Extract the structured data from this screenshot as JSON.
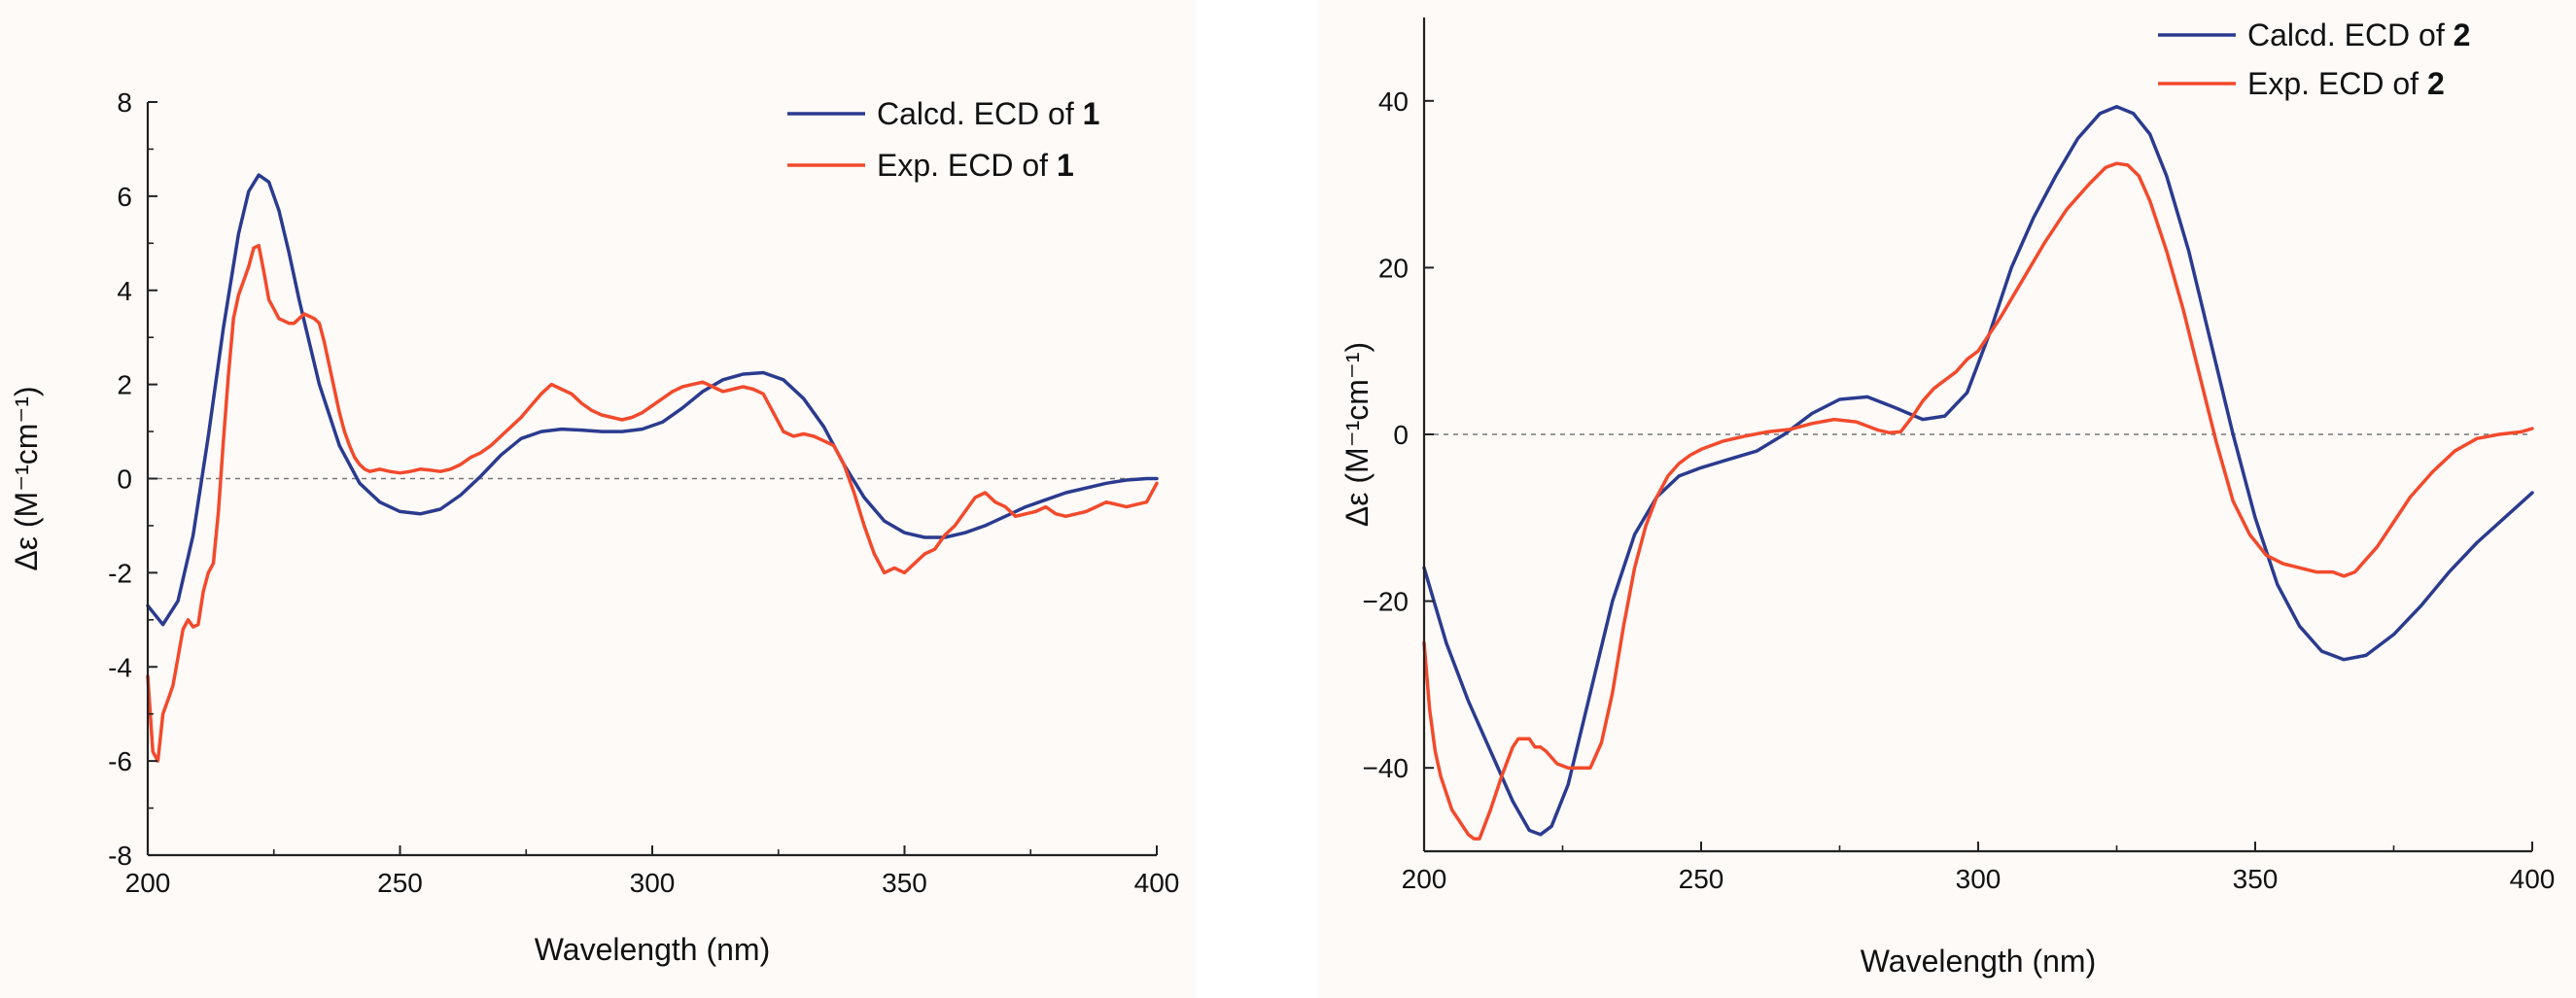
{
  "colors": {
    "calc": "#2a3b8f",
    "exp": "#f24a2c",
    "axis": "#222222",
    "zero": "#777777"
  },
  "chart_data": [
    {
      "type": "line",
      "xlabel": "Wavelength (nm)",
      "ylabel": "Δε (M⁻¹cm⁻¹)",
      "xlim": [
        200,
        400
      ],
      "ylim": [
        -8,
        8
      ],
      "xticks": [
        200,
        250,
        300,
        350,
        400
      ],
      "xtick_labels": [
        "200",
        "250",
        "300",
        "350",
        "400"
      ],
      "yticks": [
        -8,
        -6,
        -4,
        -2,
        0,
        2,
        4,
        6,
        8
      ],
      "ytick_labels": [
        "-8",
        "-6",
        "-4",
        "-2",
        "0",
        "2",
        "4",
        "6",
        "8"
      ],
      "zero_line": true,
      "legend_position": "top-right",
      "series": [
        {
          "name": "Calcd. ECD of 1",
          "legend_prefix": "Calcd. ECD of ",
          "legend_bold": "1",
          "color_key": "calc",
          "x": [
            200,
            203,
            206,
            209,
            212,
            215,
            218,
            220,
            222,
            224,
            226,
            228,
            230,
            234,
            238,
            242,
            246,
            250,
            254,
            258,
            262,
            266,
            270,
            274,
            278,
            282,
            286,
            290,
            294,
            298,
            302,
            306,
            310,
            314,
            318,
            322,
            326,
            330,
            334,
            338,
            342,
            346,
            350,
            354,
            358,
            362,
            366,
            370,
            374,
            378,
            382,
            386,
            390,
            394,
            398,
            400
          ],
          "y": [
            -2.7,
            -3.1,
            -2.6,
            -1.2,
            0.9,
            3.2,
            5.2,
            6.1,
            6.45,
            6.3,
            5.7,
            4.8,
            3.8,
            2.0,
            0.7,
            -0.1,
            -0.5,
            -0.7,
            -0.75,
            -0.65,
            -0.35,
            0.05,
            0.5,
            0.85,
            1.0,
            1.05,
            1.03,
            1.0,
            1.0,
            1.05,
            1.2,
            1.5,
            1.85,
            2.1,
            2.22,
            2.25,
            2.1,
            1.7,
            1.1,
            0.3,
            -0.4,
            -0.9,
            -1.15,
            -1.25,
            -1.25,
            -1.15,
            -1.0,
            -0.8,
            -0.6,
            -0.45,
            -0.3,
            -0.2,
            -0.1,
            -0.03,
            0.0,
            0.0
          ]
        },
        {
          "name": "Exp. ECD of 1",
          "legend_prefix": "Exp. ECD of ",
          "legend_bold": "1",
          "color_key": "exp",
          "x": [
            200,
            201,
            202,
            203,
            204,
            205,
            206,
            207,
            208,
            209,
            210,
            211,
            212,
            213,
            214,
            215,
            216,
            217,
            218,
            219,
            220,
            221,
            222,
            223,
            224,
            225,
            226,
            227,
            228,
            229,
            230,
            231,
            232,
            233,
            234,
            235,
            236,
            237,
            238,
            239,
            240,
            241,
            242,
            243,
            244,
            246,
            248,
            250,
            252,
            254,
            256,
            258,
            260,
            262,
            264,
            266,
            268,
            270,
            272,
            274,
            276,
            278,
            280,
            282,
            284,
            286,
            288,
            290,
            292,
            294,
            296,
            298,
            300,
            302,
            304,
            306,
            308,
            310,
            312,
            314,
            316,
            318,
            320,
            322,
            324,
            326,
            328,
            330,
            332,
            334,
            336,
            338,
            340,
            342,
            344,
            346,
            348,
            350,
            352,
            354,
            356,
            358,
            360,
            362,
            364,
            366,
            368,
            370,
            372,
            374,
            376,
            378,
            380,
            382,
            384,
            386,
            388,
            390,
            392,
            394,
            396,
            398,
            400
          ],
          "y": [
            -4.2,
            -5.8,
            -6.0,
            -5.0,
            -4.7,
            -4.4,
            -3.8,
            -3.2,
            -3.0,
            -3.15,
            -3.1,
            -2.4,
            -2.0,
            -1.8,
            -0.7,
            0.8,
            2.2,
            3.4,
            3.9,
            4.2,
            4.5,
            4.9,
            4.95,
            4.4,
            3.8,
            3.6,
            3.4,
            3.35,
            3.3,
            3.3,
            3.4,
            3.5,
            3.45,
            3.4,
            3.3,
            2.9,
            2.4,
            1.9,
            1.4,
            1.0,
            0.7,
            0.45,
            0.3,
            0.2,
            0.15,
            0.2,
            0.15,
            0.12,
            0.15,
            0.2,
            0.18,
            0.15,
            0.2,
            0.3,
            0.45,
            0.55,
            0.7,
            0.9,
            1.1,
            1.3,
            1.55,
            1.8,
            2.0,
            1.9,
            1.8,
            1.6,
            1.45,
            1.35,
            1.3,
            1.25,
            1.3,
            1.4,
            1.55,
            1.7,
            1.85,
            1.95,
            2.0,
            2.05,
            1.95,
            1.85,
            1.9,
            1.95,
            1.9,
            1.8,
            1.4,
            1.0,
            0.9,
            0.95,
            0.9,
            0.8,
            0.7,
            0.3,
            -0.3,
            -1.0,
            -1.6,
            -2.0,
            -1.9,
            -2.0,
            -1.8,
            -1.6,
            -1.5,
            -1.2,
            -1.0,
            -0.7,
            -0.4,
            -0.3,
            -0.5,
            -0.6,
            -0.8,
            -0.75,
            -0.7,
            -0.6,
            -0.75,
            -0.8,
            -0.75,
            -0.7,
            -0.6,
            -0.5,
            -0.55,
            -0.6,
            -0.55,
            -0.5,
            -0.1
          ]
        }
      ]
    },
    {
      "type": "line",
      "xlabel": "Wavelength (nm)",
      "ylabel": "Δε (M⁻¹cm⁻¹)",
      "xlim": [
        200,
        400
      ],
      "ylim": [
        -50,
        50
      ],
      "xticks": [
        200,
        250,
        300,
        350,
        400
      ],
      "xtick_labels": [
        "200",
        "250",
        "300",
        "350",
        "400"
      ],
      "yticks": [
        -40,
        -20,
        0,
        20,
        40
      ],
      "ytick_labels": [
        "−40",
        "−20",
        "0",
        "20",
        "40"
      ],
      "zero_line": true,
      "legend_position": "top-right",
      "series": [
        {
          "name": "Calcd. ECD of 2",
          "legend_prefix": "Calcd. ECD of ",
          "legend_bold": "2",
          "color_key": "calc",
          "x": [
            200,
            204,
            208,
            212,
            216,
            219,
            221,
            223,
            226,
            230,
            234,
            238,
            242,
            246,
            250,
            255,
            260,
            265,
            270,
            275,
            280,
            285,
            290,
            294,
            298,
            302,
            306,
            310,
            314,
            318,
            322,
            325,
            328,
            331,
            334,
            338,
            342,
            346,
            350,
            354,
            358,
            362,
            366,
            370,
            375,
            380,
            385,
            390,
            395,
            400
          ],
          "y": [
            -16,
            -25,
            -32,
            -38,
            -44,
            -47.5,
            -48,
            -47,
            -42,
            -31,
            -20,
            -12,
            -7.5,
            -5,
            -4,
            -3,
            -2,
            0,
            2.5,
            4.2,
            4.5,
            3.2,
            1.8,
            2.2,
            5,
            12,
            20,
            26,
            31,
            35.5,
            38.5,
            39.3,
            38.5,
            36,
            31,
            22,
            11,
            0,
            -10,
            -18,
            -23,
            -26,
            -27,
            -26.5,
            -24,
            -20.5,
            -16.5,
            -13,
            -10,
            -7
          ]
        },
        {
          "name": "Exp. ECD of 2",
          "legend_prefix": "Exp. ECD of ",
          "legend_bold": "2",
          "color_key": "exp",
          "x": [
            200,
            201,
            202,
            203,
            204,
            205,
            206,
            207,
            208,
            209,
            210,
            212,
            214,
            216,
            217,
            218,
            219,
            220,
            221,
            222,
            224,
            226,
            228,
            230,
            232,
            234,
            236,
            238,
            240,
            242,
            244,
            246,
            248,
            250,
            254,
            258,
            262,
            266,
            270,
            274,
            278,
            282,
            284,
            286,
            288,
            290,
            292,
            294,
            296,
            298,
            300,
            304,
            308,
            312,
            316,
            320,
            323,
            325,
            327,
            329,
            331,
            334,
            337,
            340,
            343,
            346,
            349,
            352,
            355,
            358,
            361,
            364,
            366,
            368,
            370,
            372,
            375,
            378,
            382,
            386,
            390,
            394,
            398,
            400
          ],
          "y": [
            -25,
            -33,
            -38,
            -41,
            -43,
            -45,
            -46,
            -47,
            -48,
            -48.5,
            -48.5,
            -45,
            -41,
            -37.5,
            -36.5,
            -36.5,
            -36.5,
            -37.5,
            -37.5,
            -38,
            -39.5,
            -40,
            -40,
            -40,
            -37,
            -31,
            -23,
            -16,
            -11,
            -7.5,
            -5,
            -3.5,
            -2.5,
            -1.8,
            -0.8,
            -0.2,
            0.3,
            0.6,
            1.3,
            1.8,
            1.5,
            0.5,
            0.2,
            0.3,
            2,
            4,
            5.5,
            6.5,
            7.5,
            9,
            10,
            14,
            18.5,
            23,
            27,
            30,
            32,
            32.5,
            32.3,
            31,
            28,
            22,
            15,
            7,
            -1,
            -8,
            -12,
            -14.5,
            -15.5,
            -16,
            -16.5,
            -16.5,
            -17,
            -16.5,
            -15,
            -13.5,
            -10.5,
            -7.5,
            -4.5,
            -2,
            -0.5,
            0,
            0.3,
            0.7
          ]
        }
      ]
    }
  ]
}
